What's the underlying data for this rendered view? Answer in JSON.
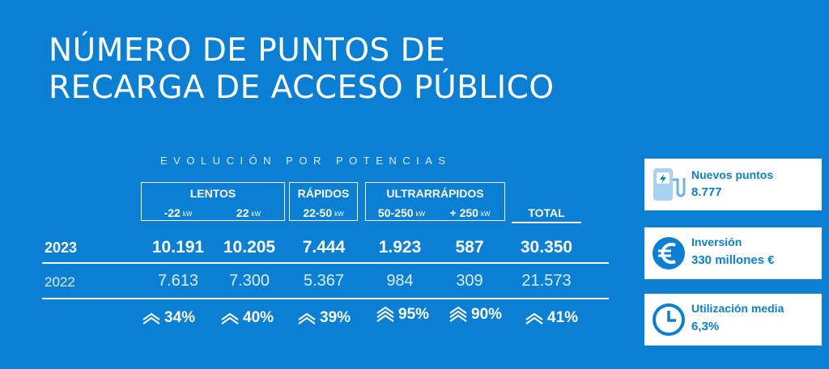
{
  "title": {
    "line1": "NÚMERO DE PUNTOS DE",
    "line2": "RECARGA DE ACCESO PÚBLICO"
  },
  "subtitle": "EVOLUCIÓN POR POTENCIAS",
  "groups": {
    "lentos": "LENTOS",
    "rapidos": "RÁPIDOS",
    "ultrarrapidos": "ULTRARRÁPIDOS"
  },
  "columns": [
    {
      "label": "-22",
      "unit": "kW"
    },
    {
      "label": "22",
      "unit": "kW"
    },
    {
      "label": "22-50",
      "unit": "kW"
    },
    {
      "label": "50-250",
      "unit": "kW"
    },
    {
      "label": "+ 250",
      "unit": "kW"
    },
    {
      "label": "TOTAL",
      "unit": ""
    }
  ],
  "rows": [
    {
      "year": "2023",
      "values": [
        "10.191",
        "10.205",
        "7.444",
        "1.923",
        "587",
        "30.350"
      ]
    },
    {
      "year": "2022",
      "values": [
        "7.613",
        "7.300",
        "5.367",
        "984",
        "309",
        "21.573"
      ]
    }
  ],
  "growth": [
    "34%",
    "40%",
    "39%",
    "95%",
    "90%",
    "41%"
  ],
  "cards": {
    "puntos": {
      "label": "Nuevos puntos",
      "value": "8.777",
      "icon": "charging-station-icon"
    },
    "inversion": {
      "label": "Inversión",
      "value": "330 millones €",
      "icon": "euro-icon"
    },
    "utilizacion": {
      "label": "Utilización media",
      "value": "6,3%",
      "icon": "clock-icon"
    }
  },
  "colors": {
    "background": "#0a7fd4",
    "text": "#ffffff",
    "card": "#ffffff",
    "card_text": "#0a7fd4"
  }
}
